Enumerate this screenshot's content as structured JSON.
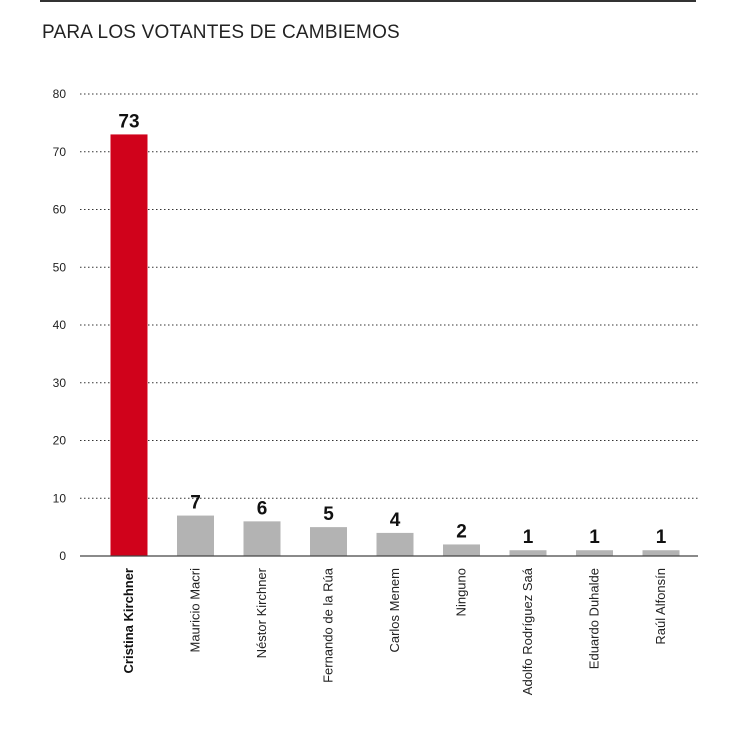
{
  "title": "PARA LOS VOTANTES DE CAMBIEMOS",
  "colors": {
    "highlight": "#d0021b",
    "bar": "#b3b3b3",
    "grid": "#333333",
    "axis": "#444444"
  },
  "chart_data": {
    "type": "bar",
    "categories": [
      "Cristina Kirchner",
      "Mauricio Macri",
      "Néstor Kirchner",
      "Fernando de la Rúa",
      "Carlos Menem",
      "Ninguno",
      "Adolfo Rodríguez Saá",
      "Eduardo Duhalde",
      "Raúl Alfonsín"
    ],
    "values": [
      73,
      7,
      6,
      5,
      4,
      2,
      1,
      1,
      1
    ],
    "highlight_index": 0,
    "ylim": [
      0,
      80
    ],
    "yticks": [
      0,
      10,
      20,
      30,
      40,
      50,
      60,
      70,
      80
    ],
    "grid": true,
    "grid_style": "dotted",
    "xlabel": "",
    "ylabel": ""
  }
}
